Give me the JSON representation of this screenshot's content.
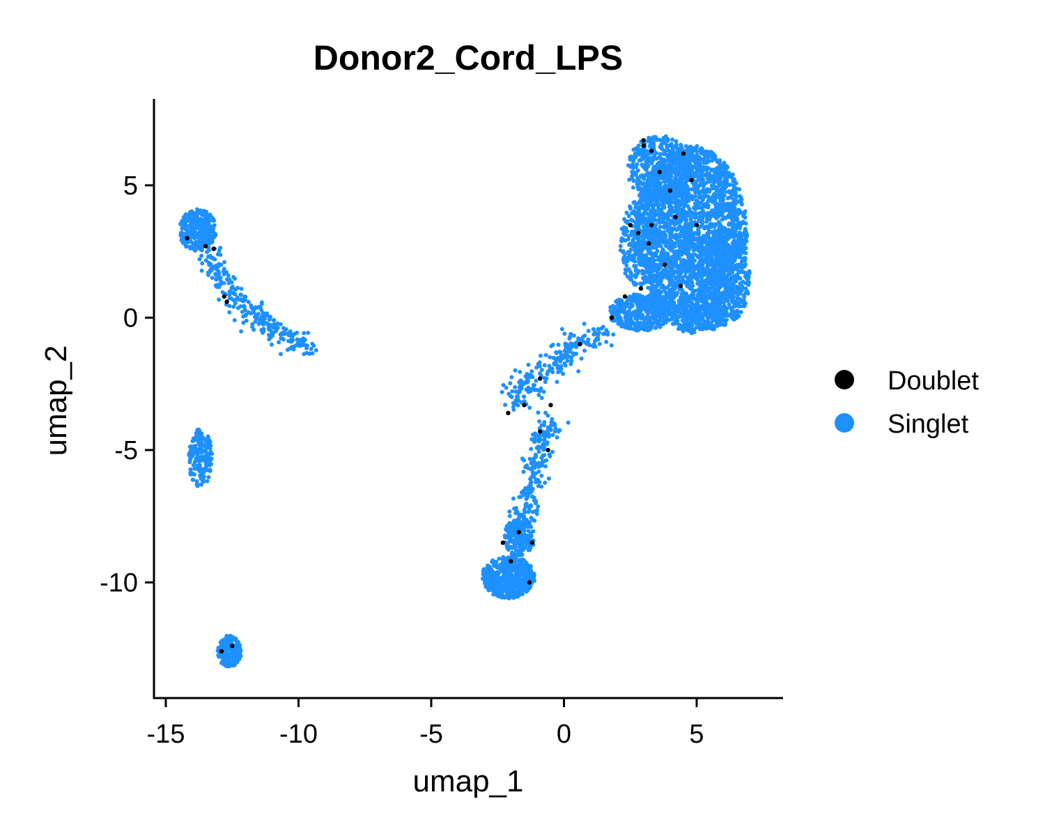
{
  "chart_data": {
    "type": "scatter",
    "title": "Donor2_Cord_LPS",
    "xlabel": "umap_1",
    "ylabel": "umap_2",
    "xlim": [
      -15.5,
      8
    ],
    "ylim": [
      -14.5,
      8.2
    ],
    "xticks": [
      -15,
      -10,
      -5,
      0,
      5
    ],
    "yticks": [
      -10,
      -5,
      0,
      5
    ],
    "xtick_labels": [
      "-15",
      "-10",
      "-5",
      "0",
      "5"
    ],
    "ytick_labels": [
      "-10",
      "-5",
      "0",
      "5"
    ],
    "grid": false,
    "legend_position": "right",
    "series": [
      {
        "name": "Doublet",
        "color": "#000000",
        "points": [
          [
            -14.2,
            3.0
          ],
          [
            -13.5,
            2.7
          ],
          [
            -13.2,
            2.6
          ],
          [
            -12.8,
            0.8
          ],
          [
            -12.7,
            0.6
          ],
          [
            -12.5,
            -12.4
          ],
          [
            -12.9,
            -12.6
          ],
          [
            -2.3,
            -8.5
          ],
          [
            -1.7,
            -8.1
          ],
          [
            -1.2,
            -8.5
          ],
          [
            -1.3,
            -10.0
          ],
          [
            -2.0,
            -9.2
          ],
          [
            -2.1,
            -3.6
          ],
          [
            -1.5,
            -3.3
          ],
          [
            -0.5,
            -3.3
          ],
          [
            -0.9,
            -2.3
          ],
          [
            -0.9,
            -4.3
          ],
          [
            -0.6,
            -5.0
          ],
          [
            0.6,
            -1.0
          ],
          [
            1.8,
            0.0
          ],
          [
            2.3,
            0.8
          ],
          [
            2.5,
            3.5
          ],
          [
            2.8,
            3.2
          ],
          [
            3.0,
            6.7
          ],
          [
            3.0,
            6.5
          ],
          [
            3.3,
            6.3
          ],
          [
            3.2,
            2.8
          ],
          [
            3.3,
            3.5
          ],
          [
            3.6,
            5.5
          ],
          [
            4.0,
            4.8
          ],
          [
            4.2,
            3.8
          ],
          [
            4.4,
            1.2
          ],
          [
            4.5,
            6.2
          ],
          [
            4.8,
            5.2
          ],
          [
            5.0,
            3.5
          ],
          [
            2.9,
            1.1
          ],
          [
            3.8,
            2.0
          ]
        ]
      },
      {
        "name": "Singlet",
        "color": "#1E90FF",
        "clusters": [
          {
            "kind": "blob",
            "cx": 4.8,
            "cy": 3.2,
            "rx": 2.1,
            "ry": 3.3,
            "n": 2600
          },
          {
            "kind": "blob",
            "cx": 3.6,
            "cy": 5.6,
            "rx": 1.2,
            "ry": 1.3,
            "n": 450
          },
          {
            "kind": "blob",
            "cx": 2.9,
            "cy": 0.2,
            "rx": 1.2,
            "ry": 0.7,
            "n": 420
          },
          {
            "kind": "blob",
            "cx": 6.0,
            "cy": 1.5,
            "rx": 1.0,
            "ry": 1.8,
            "n": 500
          },
          {
            "kind": "blob",
            "cx": 5.0,
            "cy": 0.0,
            "rx": 1.0,
            "ry": 0.6,
            "n": 200
          },
          {
            "kind": "blob",
            "cx": 2.8,
            "cy": 2.8,
            "rx": 0.7,
            "ry": 1.6,
            "n": 220
          },
          {
            "kind": "blob",
            "cx": -2.1,
            "cy": -9.8,
            "rx": 1.0,
            "ry": 0.8,
            "n": 520
          },
          {
            "kind": "blob",
            "cx": -1.7,
            "cy": -8.3,
            "rx": 0.6,
            "ry": 0.7,
            "n": 160
          },
          {
            "kind": "blob",
            "cx": -13.8,
            "cy": 3.3,
            "rx": 0.7,
            "ry": 0.8,
            "n": 330
          },
          {
            "kind": "blob",
            "cx": -12.6,
            "cy": -12.6,
            "rx": 0.45,
            "ry": 0.6,
            "n": 200
          },
          {
            "kind": "blob",
            "cx": -13.7,
            "cy": -5.3,
            "rx": 0.45,
            "ry": 1.1,
            "n": 170
          },
          {
            "kind": "path",
            "pts": [
              [
                -13.5,
                2.5
              ],
              [
                -12.8,
                1.2
              ],
              [
                -11.8,
                0.1
              ],
              [
                -10.6,
                -0.6
              ],
              [
                -9.6,
                -1.2
              ]
            ],
            "n": 260,
            "w": 0.25
          },
          {
            "kind": "path",
            "pts": [
              [
                -2.0,
                -3.2
              ],
              [
                -1.2,
                -2.3
              ],
              [
                -0.2,
                -1.6
              ],
              [
                0.4,
                -1.0
              ],
              [
                1.5,
                -0.7
              ]
            ],
            "n": 220,
            "w": 0.25
          },
          {
            "kind": "path",
            "pts": [
              [
                -0.5,
                -3.8
              ],
              [
                -0.9,
                -4.8
              ],
              [
                -1.2,
                -6.2
              ],
              [
                -1.5,
                -7.5
              ],
              [
                -1.8,
                -8.3
              ]
            ],
            "n": 230,
            "w": 0.25
          }
        ]
      }
    ]
  }
}
